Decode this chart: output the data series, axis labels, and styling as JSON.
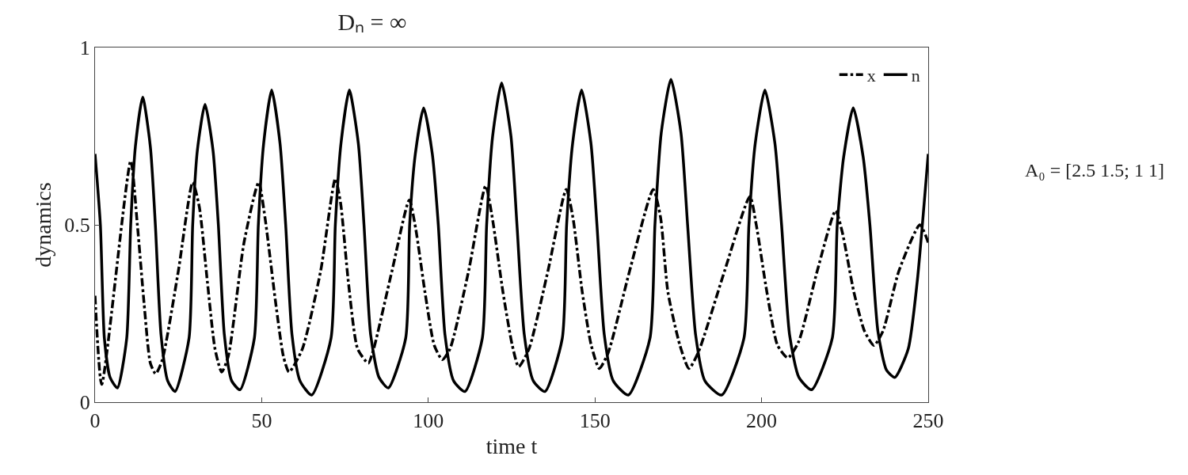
{
  "chart_data": {
    "type": "line",
    "title": "Dₙ = ∞",
    "xlabel": "time t",
    "ylabel": "dynamics",
    "annotations": [
      "A₀ = [2.5 1.5; 1 1]"
    ],
    "xlim": [
      0,
      250
    ],
    "xticks": [
      0,
      50,
      100,
      150,
      200,
      250
    ],
    "ylim": [
      0,
      1
    ],
    "yticks": [
      0,
      0.5,
      1
    ],
    "legend": "top right",
    "series": [
      {
        "name": "x",
        "color": "#000000",
        "line_style": "dashdot",
        "x": [
          0,
          2,
          10.7,
          12.7,
          14.7,
          16.6,
          18.2,
          20.2,
          25,
          29.3,
          31.3,
          33.7,
          36,
          38,
          40,
          44.7,
          49.1,
          51,
          54.2,
          56.5,
          58.2,
          62.2,
          67.7,
          72.1,
          73.7,
          76,
          78.8,
          82,
          83.6,
          89.1,
          94.3,
          96.2,
          99,
          101.8,
          104.2,
          106.5,
          112.1,
          117.2,
          119.2,
          122.4,
          125.2,
          127.1,
          130.2,
          135.9,
          141.4,
          143.4,
          146.2,
          148.9,
          151.3,
          154,
          160.4,
          167.5,
          169.7,
          171.9,
          175.5,
          178.2,
          181,
          188.9,
          196.5,
          198.4,
          201.6,
          204.8,
          207.9,
          211.1,
          216.7,
          222.2,
          224.2,
          227.7,
          230.9,
          233.7,
          236.4,
          241.2,
          247.5,
          250
        ],
        "values": [
          0.3,
          0.05,
          0.68,
          0.5,
          0.28,
          0.11,
          0.08,
          0.12,
          0.37,
          0.62,
          0.55,
          0.34,
          0.15,
          0.085,
          0.13,
          0.45,
          0.62,
          0.52,
          0.28,
          0.13,
          0.085,
          0.15,
          0.37,
          0.63,
          0.56,
          0.34,
          0.15,
          0.11,
          0.15,
          0.37,
          0.57,
          0.49,
          0.31,
          0.16,
          0.12,
          0.15,
          0.37,
          0.61,
          0.52,
          0.31,
          0.16,
          0.1,
          0.15,
          0.37,
          0.6,
          0.52,
          0.31,
          0.16,
          0.095,
          0.14,
          0.37,
          0.6,
          0.52,
          0.31,
          0.16,
          0.095,
          0.14,
          0.37,
          0.58,
          0.5,
          0.31,
          0.16,
          0.125,
          0.17,
          0.37,
          0.54,
          0.48,
          0.31,
          0.2,
          0.16,
          0.2,
          0.37,
          0.5,
          0.45
        ]
      },
      {
        "name": "n",
        "color": "#000000",
        "line_style": "solid",
        "x": [
          0,
          1.6,
          2.8,
          4.5,
          6.7,
          9.5,
          10.7,
          12.1,
          14.3,
          16.6,
          18.1,
          19.8,
          21.8,
          24,
          28.2,
          29.3,
          30.7,
          33,
          35.4,
          37,
          38.8,
          41,
          43.5,
          47.8,
          49,
          50.6,
          53,
          55.5,
          57.2,
          59.1,
          61.5,
          65,
          70.8,
          72.1,
          73.8,
          76.3,
          79,
          80.7,
          82.7,
          85.2,
          88,
          93.2,
          94.4,
          96.1,
          98.6,
          101.2,
          103,
          105,
          107.6,
          111,
          116.2,
          117.5,
          119.3,
          122,
          124.8,
          126.6,
          128.8,
          131.5,
          135,
          140.2,
          141.5,
          143.3,
          146,
          148.8,
          150.6,
          152.8,
          155.5,
          160,
          166.5,
          168,
          169.9,
          172.8,
          175.8,
          177.8,
          180.2,
          183,
          188,
          194.7,
          196.2,
          198.1,
          201,
          204,
          206,
          208.4,
          211.2,
          215,
          221.2,
          222.7,
          224.6,
          227.5,
          230.5,
          232.5,
          234.9,
          237.5,
          240,
          244,
          246.7,
          250
        ],
        "values": [
          0.7,
          0.5,
          0.18,
          0.07,
          0.04,
          0.18,
          0.5,
          0.72,
          0.86,
          0.72,
          0.5,
          0.19,
          0.06,
          0.03,
          0.18,
          0.5,
          0.71,
          0.84,
          0.71,
          0.5,
          0.19,
          0.06,
          0.035,
          0.18,
          0.5,
          0.73,
          0.88,
          0.73,
          0.5,
          0.19,
          0.06,
          0.02,
          0.18,
          0.5,
          0.73,
          0.88,
          0.73,
          0.5,
          0.19,
          0.07,
          0.04,
          0.18,
          0.5,
          0.7,
          0.83,
          0.7,
          0.5,
          0.19,
          0.06,
          0.03,
          0.18,
          0.5,
          0.75,
          0.9,
          0.75,
          0.5,
          0.19,
          0.06,
          0.03,
          0.18,
          0.5,
          0.73,
          0.88,
          0.73,
          0.5,
          0.19,
          0.06,
          0.02,
          0.18,
          0.5,
          0.76,
          0.91,
          0.76,
          0.5,
          0.19,
          0.06,
          0.02,
          0.18,
          0.5,
          0.73,
          0.88,
          0.73,
          0.5,
          0.19,
          0.07,
          0.035,
          0.18,
          0.5,
          0.69,
          0.83,
          0.69,
          0.5,
          0.2,
          0.09,
          0.07,
          0.15,
          0.34,
          0.7
        ]
      }
    ]
  }
}
